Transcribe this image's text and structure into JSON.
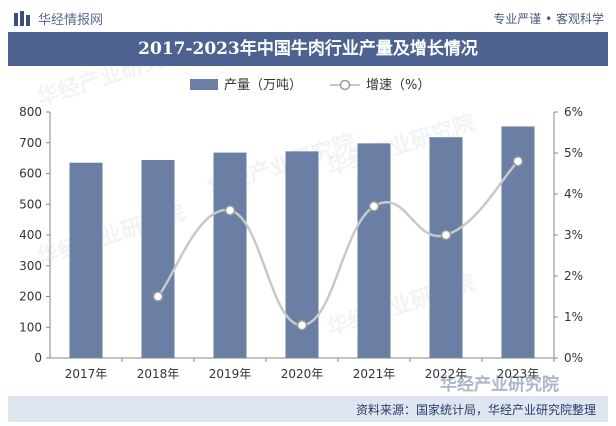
{
  "header": {
    "brand": "华经情报网",
    "slogan": "专业严谨 • 客观科学",
    "title": "2017-2023年中国牛肉行业产量及增长情况"
  },
  "footer": {
    "source": "资料来源：国家统计局，华经产业研究院整理",
    "watermark": "华经产业研究院"
  },
  "colors": {
    "bar": "#6b7fa5",
    "line": "#c8c8c8",
    "title_band": "#4d6291",
    "footer_band": "#dfe6f2"
  },
  "chart_data": {
    "type": "bar",
    "categories": [
      "2017年",
      "2018年",
      "2019年",
      "2020年",
      "2021年",
      "2022年",
      "2023年"
    ],
    "series": [
      {
        "name": "产量（万吨）",
        "type": "bar",
        "axis": "left",
        "values": [
          635,
          644,
          668,
          672,
          698,
          718,
          753
        ]
      },
      {
        "name": "增速（%）",
        "type": "line",
        "axis": "right",
        "values": [
          null,
          1.5,
          3.6,
          0.8,
          3.7,
          3.0,
          4.8
        ]
      }
    ],
    "y_left": {
      "ylim": [
        0,
        800
      ],
      "ticks": [
        "0",
        "100",
        "200",
        "300",
        "400",
        "500",
        "600",
        "700",
        "800"
      ]
    },
    "y_right": {
      "ylim": [
        0,
        6
      ],
      "ticks": [
        "0%",
        "1%",
        "2%",
        "3%",
        "4%",
        "5%",
        "6%"
      ]
    },
    "legend_position": "top",
    "grid": false
  }
}
